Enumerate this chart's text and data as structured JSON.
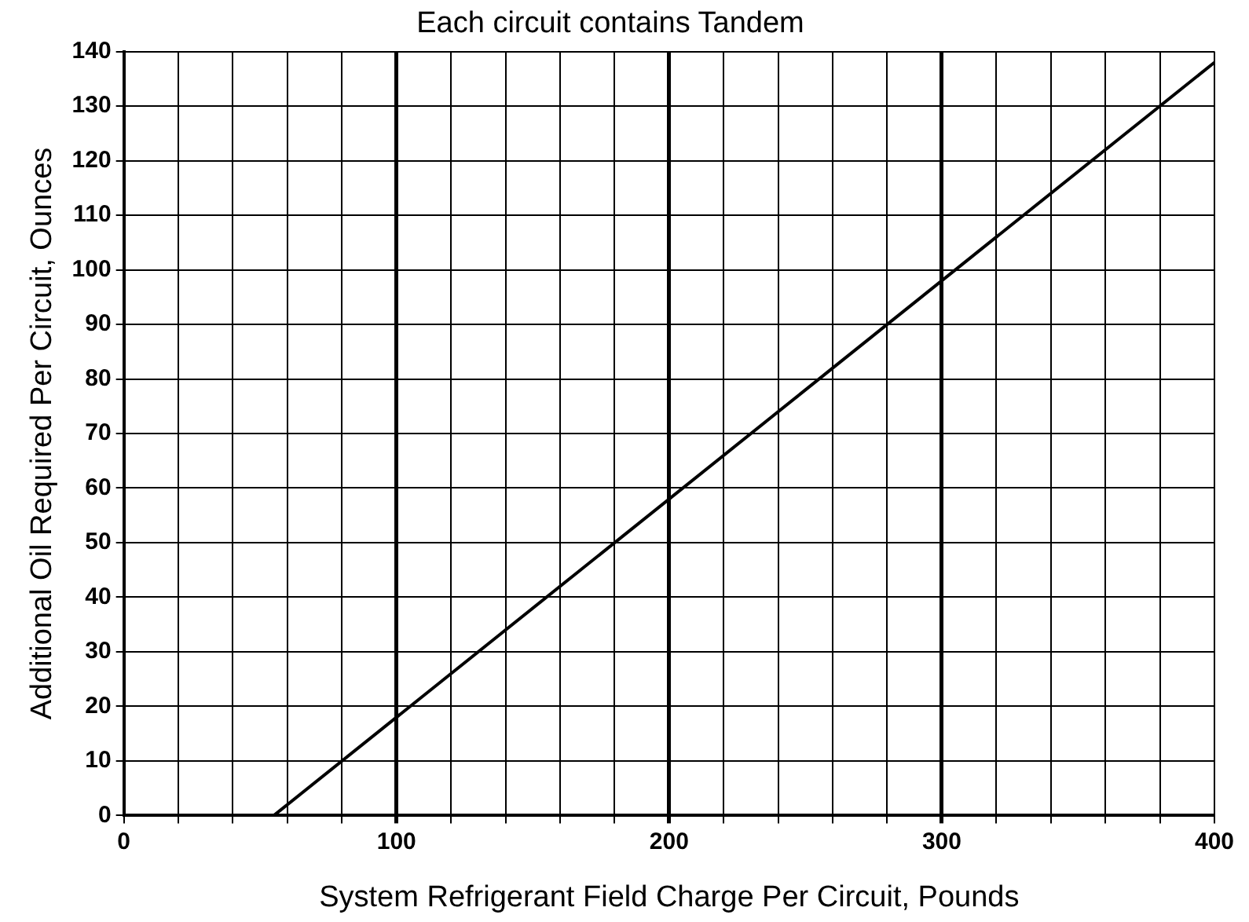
{
  "chart_data": {
    "type": "line",
    "title": "Each circuit contains Tandem",
    "xlabel": "System Refrigerant Field Charge Per Circuit, Pounds",
    "ylabel": "Additional Oil Required Per Circuit, Ounces",
    "x": [
      55,
      400
    ],
    "series": [
      {
        "color": "#000000",
        "values": [
          0,
          138
        ]
      }
    ],
    "xlim": [
      0,
      400
    ],
    "ylim": [
      0,
      140
    ],
    "xticks": [
      0,
      {
        "value": 20,
        "label": null
      },
      {
        "value": 40,
        "label": null
      },
      {
        "value": 60,
        "label": null
      },
      {
        "value": 80,
        "label": null
      },
      100,
      {
        "value": 120,
        "label": null
      },
      {
        "value": 140,
        "label": null
      },
      {
        "value": 160,
        "label": null
      },
      {
        "value": 180,
        "label": null
      },
      200,
      {
        "value": 220,
        "label": null
      },
      {
        "value": 240,
        "label": null
      },
      {
        "value": 260,
        "label": null
      },
      {
        "value": 280,
        "label": null
      },
      300,
      {
        "value": 320,
        "label": null
      },
      {
        "value": 340,
        "label": null
      },
      {
        "value": 360,
        "label": null
      },
      {
        "value": 380,
        "label": null
      },
      400
    ],
    "yticks": [
      0,
      10,
      20,
      30,
      40,
      50,
      60,
      70,
      80,
      90,
      100,
      110,
      120,
      130,
      140
    ],
    "grid": true,
    "legend": false,
    "marker": "none",
    "line_style": "solid"
  }
}
